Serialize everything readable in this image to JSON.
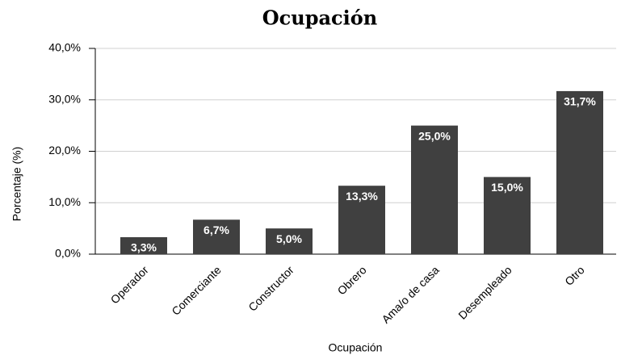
{
  "chart_data": {
    "type": "bar",
    "title": "Ocupación",
    "x_label": "Ocupación",
    "y_label": "Porcentaje (%)",
    "categories": [
      "Operador",
      "Comerciante",
      "Constructor",
      "Obrero",
      "Ama/o de casa",
      "Desempleado",
      "Otro"
    ],
    "values": [
      3.3,
      6.7,
      5.0,
      13.3,
      25.0,
      15.0,
      31.7
    ],
    "value_labels": [
      "3,3%",
      "6,7%",
      "5,0%",
      "13,3%",
      "25,0%",
      "15,0%",
      "31,7%"
    ],
    "color": "#404040",
    "ylim": [
      0,
      40
    ],
    "yticks": [
      {
        "value": 0,
        "label": "0,0%"
      },
      {
        "value": 10,
        "label": "10,0%"
      },
      {
        "value": 20,
        "label": "20,0%"
      },
      {
        "value": 30,
        "label": "30,0%"
      },
      {
        "value": 40,
        "label": "40,0%"
      }
    ],
    "grid": true
  }
}
